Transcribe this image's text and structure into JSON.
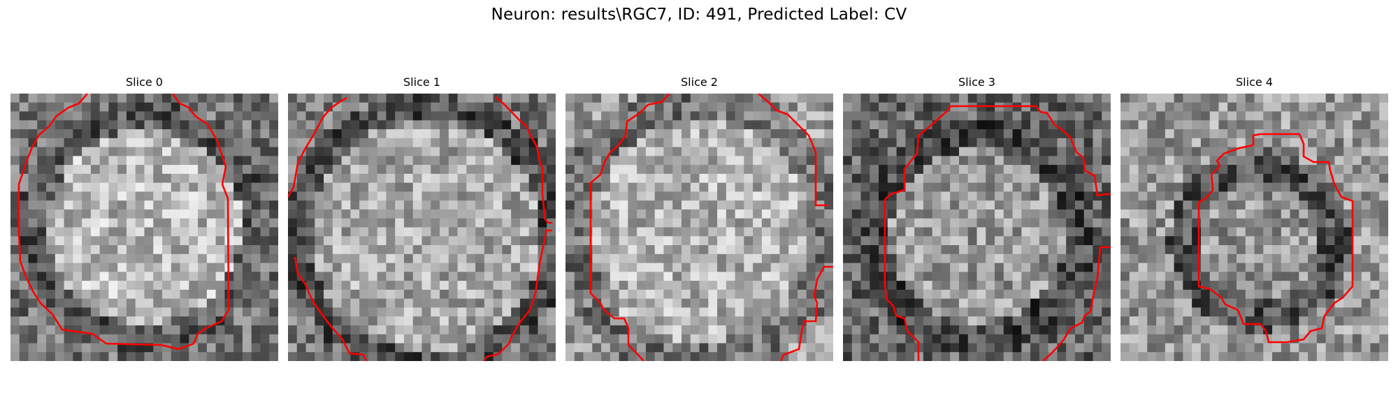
{
  "figure": {
    "title": "Neuron: results\\RGC7, ID: 491, Predicted Label: CV"
  },
  "panels": [
    {
      "title": "Slice 0"
    },
    {
      "title": "Slice 1"
    },
    {
      "title": "Slice 2"
    },
    {
      "title": "Slice 3"
    },
    {
      "title": "Slice 4"
    }
  ],
  "colors": {
    "contour": "#ff0000",
    "background": "#ffffff"
  }
}
